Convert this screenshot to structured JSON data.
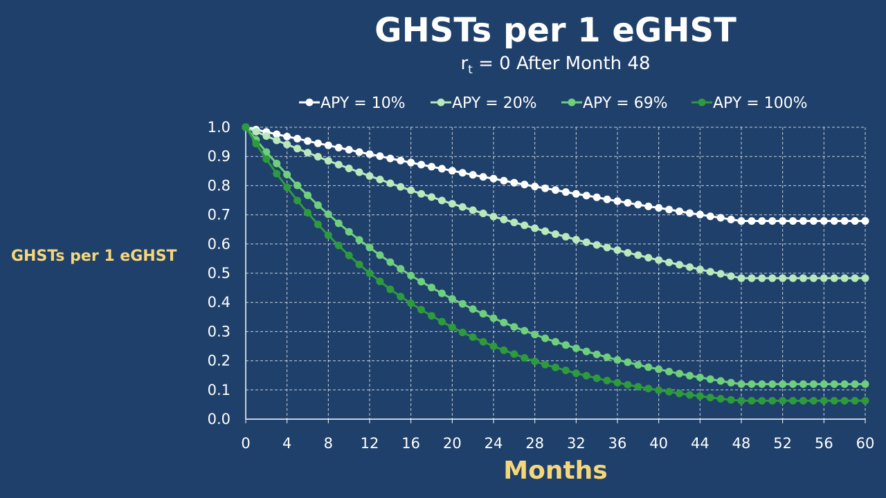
{
  "chart_data": {
    "type": "line",
    "title": "GHSTs per 1 eGHST",
    "subtitle_pre": "r",
    "subtitle_sub": "t",
    "subtitle_post": " = 0 After Month 48",
    "xlabel": "Months",
    "ylabel": "GHSTs per 1 eGHST",
    "xlim": [
      0,
      60
    ],
    "ylim": [
      0,
      1.0
    ],
    "x_ticks": [
      "0",
      "4",
      "8",
      "12",
      "16",
      "20",
      "24",
      "28",
      "32",
      "36",
      "40",
      "44",
      "48",
      "52",
      "56",
      "60"
    ],
    "y_ticks": [
      "0.0",
      "0.1",
      "0.2",
      "0.3",
      "0.4",
      "0.5",
      "0.6",
      "0.7",
      "0.8",
      "0.9",
      "1.0"
    ],
    "grid": true,
    "legend_position": "top",
    "series": [
      {
        "name": "APY = 10%",
        "color": "#ffffff",
        "values": [
          1.0,
          0.992,
          0.984,
          0.976,
          0.968,
          0.961,
          0.953,
          0.945,
          0.938,
          0.93,
          0.923,
          0.915,
          0.908,
          0.901,
          0.893,
          0.886,
          0.879,
          0.872,
          0.865,
          0.858,
          0.851,
          0.844,
          0.837,
          0.83,
          0.824,
          0.817,
          0.81,
          0.804,
          0.797,
          0.791,
          0.785,
          0.778,
          0.772,
          0.766,
          0.76,
          0.753,
          0.747,
          0.741,
          0.735,
          0.729,
          0.724,
          0.718,
          0.712,
          0.706,
          0.701,
          0.695,
          0.69,
          0.684,
          0.679,
          0.679,
          0.679,
          0.679,
          0.679,
          0.679,
          0.679,
          0.679,
          0.679,
          0.679,
          0.679,
          0.679,
          0.679
        ]
      },
      {
        "name": "APY = 20%",
        "color": "#b9e8bd",
        "values": [
          1.0,
          0.985,
          0.97,
          0.955,
          0.941,
          0.927,
          0.913,
          0.899,
          0.885,
          0.872,
          0.859,
          0.846,
          0.833,
          0.821,
          0.808,
          0.796,
          0.784,
          0.772,
          0.761,
          0.749,
          0.738,
          0.727,
          0.716,
          0.705,
          0.694,
          0.684,
          0.674,
          0.664,
          0.654,
          0.644,
          0.634,
          0.625,
          0.615,
          0.606,
          0.597,
          0.588,
          0.579,
          0.57,
          0.562,
          0.553,
          0.545,
          0.537,
          0.529,
          0.521,
          0.513,
          0.505,
          0.498,
          0.49,
          0.483,
          0.483,
          0.483,
          0.483,
          0.483,
          0.483,
          0.483,
          0.483,
          0.483,
          0.483,
          0.483,
          0.483,
          0.483
        ]
      },
      {
        "name": "APY = 69%",
        "color": "#6fcf7e",
        "values": [
          1.0,
          0.957,
          0.915,
          0.876,
          0.838,
          0.801,
          0.767,
          0.733,
          0.702,
          0.671,
          0.642,
          0.614,
          0.588,
          0.562,
          0.538,
          0.515,
          0.492,
          0.471,
          0.451,
          0.431,
          0.412,
          0.395,
          0.377,
          0.361,
          0.346,
          0.331,
          0.316,
          0.303,
          0.29,
          0.277,
          0.265,
          0.254,
          0.243,
          0.232,
          0.222,
          0.212,
          0.203,
          0.195,
          0.186,
          0.178,
          0.171,
          0.163,
          0.156,
          0.149,
          0.143,
          0.137,
          0.131,
          0.125,
          0.12,
          0.12,
          0.12,
          0.12,
          0.12,
          0.12,
          0.12,
          0.12,
          0.12,
          0.12,
          0.12,
          0.12,
          0.12
        ]
      },
      {
        "name": "APY = 100%",
        "color": "#2e9a3e",
        "values": [
          1.0,
          0.944,
          0.891,
          0.841,
          0.794,
          0.749,
          0.707,
          0.667,
          0.63,
          0.595,
          0.561,
          0.53,
          0.5,
          0.472,
          0.445,
          0.42,
          0.397,
          0.375,
          0.354,
          0.334,
          0.315,
          0.297,
          0.281,
          0.265,
          0.25,
          0.236,
          0.223,
          0.21,
          0.198,
          0.187,
          0.177,
          0.167,
          0.157,
          0.149,
          0.14,
          0.132,
          0.125,
          0.118,
          0.111,
          0.105,
          0.099,
          0.094,
          0.088,
          0.083,
          0.079,
          0.074,
          0.07,
          0.066,
          0.063,
          0.063,
          0.063,
          0.063,
          0.063,
          0.063,
          0.063,
          0.063,
          0.063,
          0.063,
          0.063,
          0.063,
          0.063
        ]
      }
    ]
  }
}
